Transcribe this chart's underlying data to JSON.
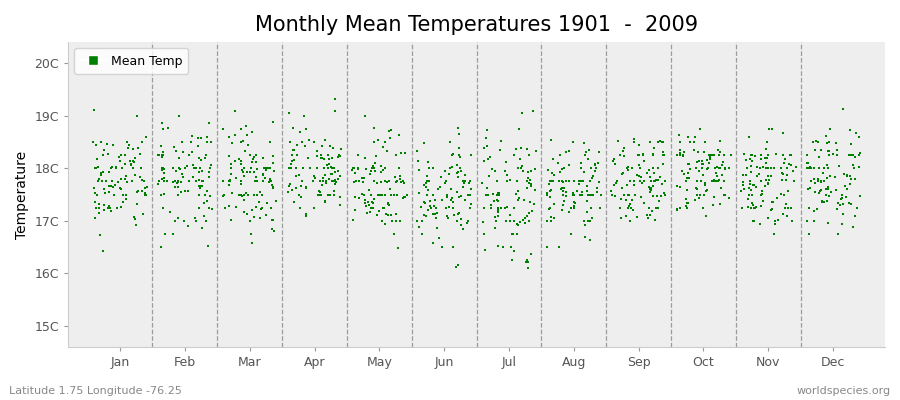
{
  "title": "Monthly Mean Temperatures 1901  -  2009",
  "ylabel": "Temperature",
  "xlabel_labels": [
    "Jan",
    "Feb",
    "Mar",
    "Apr",
    "May",
    "Jun",
    "Jul",
    "Aug",
    "Sep",
    "Oct",
    "Nov",
    "Dec"
  ],
  "ytick_labels": [
    "15C",
    "16C",
    "17C",
    "18C",
    "19C",
    "20C"
  ],
  "ytick_values": [
    15,
    16,
    17,
    18,
    19,
    20
  ],
  "ylim": [
    14.6,
    20.4
  ],
  "dot_color": "#008000",
  "background_color": "#EEEEEE",
  "figure_background": "#FFFFFF",
  "title_fontsize": 15,
  "axis_fontsize": 10,
  "tick_fontsize": 9,
  "legend_label": "Mean Temp",
  "footer_left": "Latitude 1.75 Longitude -76.25",
  "footer_right": "worldspecies.org",
  "n_years": 109,
  "monthly_means": [
    17.75,
    17.8,
    17.85,
    17.9,
    17.7,
    17.55,
    17.5,
    17.65,
    17.75,
    17.85,
    17.8,
    17.75
  ],
  "monthly_stds": [
    0.5,
    0.52,
    0.48,
    0.48,
    0.48,
    0.5,
    0.58,
    0.42,
    0.42,
    0.42,
    0.46,
    0.5
  ],
  "seed": 42
}
